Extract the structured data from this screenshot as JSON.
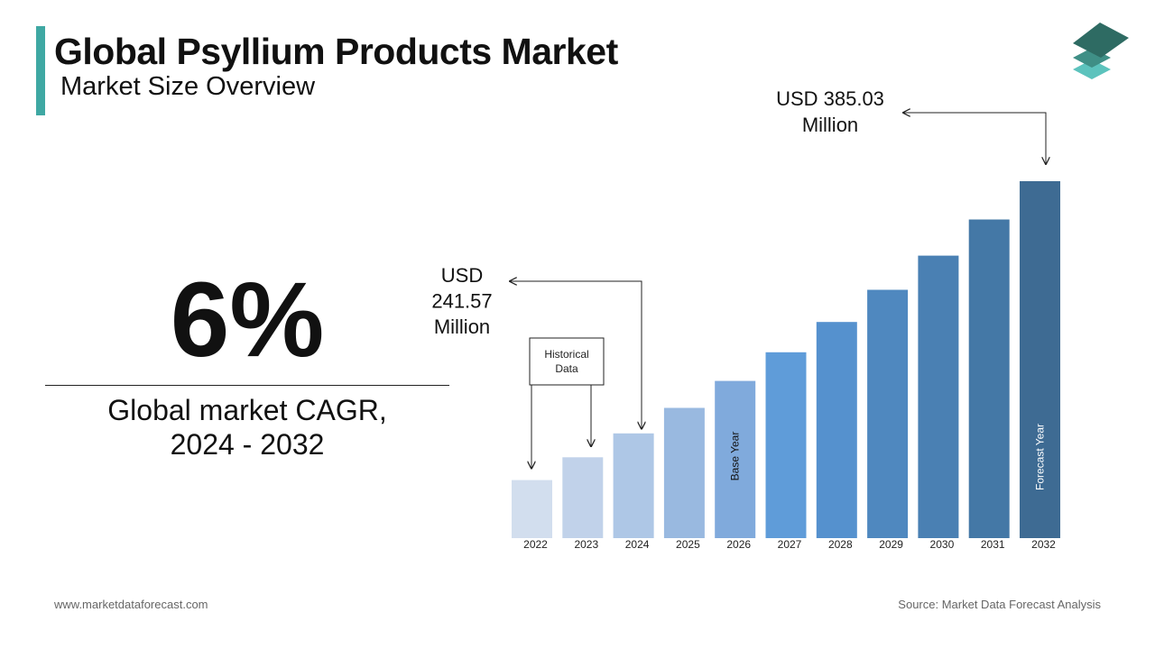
{
  "header": {
    "title": "Global Psyllium Products Market",
    "subtitle": "Market Size Overview"
  },
  "cagr": {
    "value": "6%",
    "label_line1": "Global market CAGR,",
    "label_line2": "2024 - 2032"
  },
  "colors": {
    "accent": "#3fa8a3",
    "logo_dark": "#2e6b63",
    "logo_mid": "#3f8f86",
    "logo_light": "#5cc3bd"
  },
  "chart_data": {
    "type": "bar",
    "categories": [
      "2022",
      "2023",
      "2024",
      "2025",
      "2026",
      "2027",
      "2028",
      "2029",
      "2030",
      "2031",
      "2032"
    ],
    "values": [
      215.0,
      228.0,
      241.57,
      256.06,
      271.42,
      287.71,
      304.97,
      323.27,
      342.66,
      363.22,
      385.03
    ],
    "bar_colors": [
      "#d2deee",
      "#c1d2ea",
      "#aec7e6",
      "#99b9e0",
      "#80aadc",
      "#5f9cd9",
      "#5591ce",
      "#4f88bf",
      "#4a80b3",
      "#4478a6",
      "#3e6b93"
    ],
    "ylim": [
      182,
      385.03
    ],
    "annotations": {
      "start_value": "USD 241.57 Million",
      "start_lines": [
        "USD",
        "241.57",
        "Million"
      ],
      "end_value": "USD 385.03 Million",
      "end_lines": [
        "USD 385.03",
        "Million"
      ],
      "historical_lines": [
        "Historical",
        "Data"
      ],
      "base_year": "Base Year",
      "forecast_year": "Forecast Year"
    }
  },
  "footer": {
    "website": "www.marketdataforecast.com",
    "source": "Source: Market Data Forecast Analysis"
  }
}
